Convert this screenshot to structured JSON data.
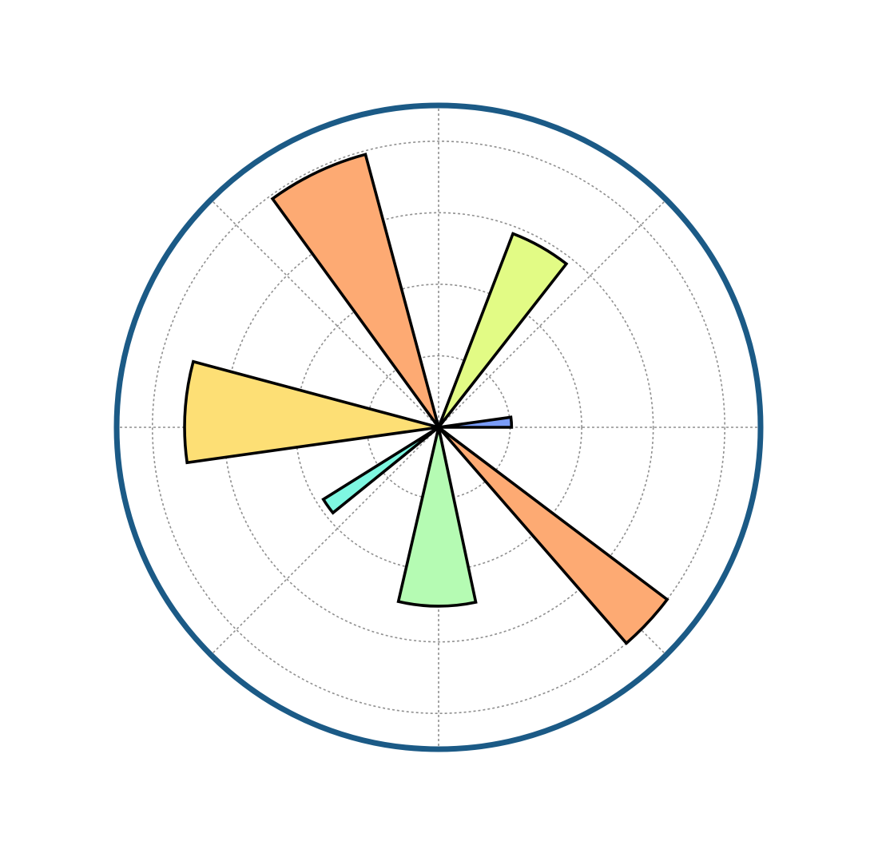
{
  "chart_data": {
    "type": "bar",
    "projection": "polar",
    "theta_unit": "degrees",
    "theta_zero": "east",
    "theta_direction": "counterclockwise",
    "r_ticks": [
      1,
      2,
      3,
      4
    ],
    "r_max": 4.5,
    "theta_gridlines": [
      0,
      45,
      90,
      135,
      180,
      225,
      270,
      315
    ],
    "grid": true,
    "tick_labels_visible": false,
    "frame_color": "#1b5a86",
    "bars": [
      {
        "theta_start": 0,
        "theta_end": 8,
        "r": 1.02,
        "color": "#7a9cf7"
      },
      {
        "theta_start": 52,
        "theta_end": 69,
        "r": 2.9,
        "color": "#e2fb85"
      },
      {
        "theta_start": 105,
        "theta_end": 126,
        "r": 3.95,
        "color": "#fdaa73"
      },
      {
        "theta_start": 165,
        "theta_end": 188,
        "r": 3.55,
        "color": "#fddf75"
      },
      {
        "theta_start": 212,
        "theta_end": 219,
        "r": 1.9,
        "color": "#7ef7e1"
      },
      {
        "theta_start": 257,
        "theta_end": 282,
        "r": 2.5,
        "color": "#b5fbb3"
      },
      {
        "theta_start": 311,
        "theta_end": 323,
        "r": 4.0,
        "color": "#fdaa73"
      }
    ]
  }
}
